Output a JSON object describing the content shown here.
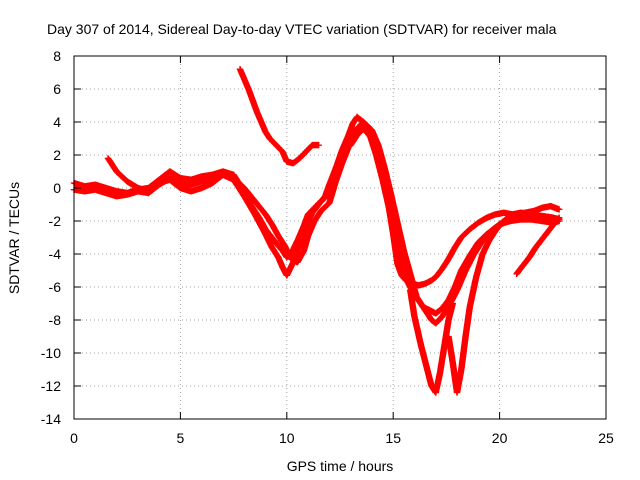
{
  "chart_data": {
    "type": "scatter",
    "title": "Day 307 of 2014, Sidereal Day-to-day VTEC variation (SDTVAR) for receiver mala",
    "xlabel": "GPS time / hours",
    "ylabel": "SDTVAR / TECUs",
    "xlim": [
      0,
      25
    ],
    "ylim": [
      -14,
      8
    ],
    "xticks": [
      0,
      5,
      10,
      15,
      20,
      25
    ],
    "yticks": [
      -14,
      -12,
      -10,
      -8,
      -6,
      -4,
      -2,
      0,
      2,
      4,
      6,
      8
    ],
    "grid": true,
    "marker": "+",
    "color": "#ff0000",
    "series": [
      {
        "x": [
          0.0,
          0.5,
          1.0,
          1.5,
          2.0,
          2.5,
          3.0,
          3.5,
          4.0,
          4.5,
          5.0,
          5.5,
          6.0,
          6.5,
          7.0,
          7.5,
          7.8,
          8.0,
          8.3,
          8.7,
          9.0,
          9.3,
          9.6,
          9.8,
          10.0,
          10.2,
          10.5,
          10.8,
          11.0,
          11.3,
          11.6,
          11.8,
          12.0,
          12.3,
          12.6,
          12.9,
          13.1,
          13.3,
          13.6,
          13.9,
          14.2,
          14.5,
          14.8,
          15.0,
          15.2,
          15.4,
          15.6,
          15.9,
          16.2,
          16.5,
          16.8,
          17.0,
          17.3,
          17.6,
          17.9,
          18.2,
          18.6,
          19.0,
          19.4,
          19.8,
          20.2,
          20.6,
          21.0,
          21.5,
          22.0,
          22.5,
          22.8
        ],
        "y": [
          0.3,
          0.1,
          0.2,
          0.0,
          -0.2,
          -0.3,
          -0.1,
          0.0,
          0.5,
          1.0,
          0.6,
          0.5,
          0.7,
          0.8,
          1.0,
          0.8,
          0.2,
          -0.3,
          -1.0,
          -1.8,
          -2.5,
          -3.0,
          -3.5,
          -3.8,
          -4.2,
          -4.0,
          -3.2,
          -2.3,
          -1.6,
          -1.2,
          -0.8,
          -0.6,
          0.2,
          1.2,
          2.3,
          3.2,
          3.9,
          4.3,
          4.0,
          3.2,
          2.0,
          0.5,
          -1.2,
          -2.8,
          -4.6,
          -5.3,
          -5.6,
          -5.8,
          -5.9,
          -5.8,
          -5.6,
          -5.4,
          -4.9,
          -4.3,
          -3.6,
          -3.0,
          -2.5,
          -2.1,
          -1.8,
          -1.6,
          -1.5,
          -1.6,
          -1.5,
          -1.6,
          -1.7,
          -1.8,
          -1.9
        ]
      },
      {
        "x": [
          0.0,
          0.5,
          1.0,
          1.5,
          2.0,
          2.5,
          3.0,
          3.5,
          4.0,
          4.5,
          5.0,
          5.5,
          6.0,
          6.5,
          7.0,
          7.5,
          8.0,
          8.5,
          9.0,
          9.3,
          9.6,
          9.9,
          10.2,
          10.5,
          10.8,
          11.0,
          11.3,
          11.6,
          12.0,
          12.3,
          12.6,
          13.0,
          13.3,
          13.6,
          14.0,
          14.3,
          14.6,
          14.9,
          15.2,
          15.5,
          15.8,
          16.1,
          16.4,
          16.7,
          17.0,
          17.3,
          17.6,
          17.9,
          18.2,
          18.6,
          19.0,
          19.4,
          19.8,
          20.2,
          20.6,
          21.0,
          21.5,
          22.0,
          22.5,
          22.8
        ],
        "y": [
          -0.1,
          -0.2,
          -0.1,
          -0.3,
          -0.5,
          -0.4,
          -0.2,
          -0.3,
          0.2,
          0.6,
          0.3,
          0.2,
          0.4,
          0.6,
          0.9,
          0.6,
          0.0,
          -0.8,
          -1.6,
          -2.2,
          -2.9,
          -3.5,
          -4.3,
          -4.5,
          -3.8,
          -2.9,
          -2.0,
          -1.4,
          -0.9,
          0.4,
          1.5,
          2.8,
          3.6,
          4.0,
          3.5,
          2.6,
          1.2,
          -0.4,
          -2.1,
          -3.8,
          -5.2,
          -6.6,
          -7.2,
          -7.4,
          -7.6,
          -7.3,
          -6.8,
          -6.0,
          -5.0,
          -4.1,
          -3.3,
          -2.8,
          -2.4,
          -2.1,
          -1.9,
          -1.8,
          -1.8,
          -1.7,
          -1.8,
          -1.9
        ]
      },
      {
        "x": [
          1.6,
          2.0,
          2.5,
          3.0,
          3.5,
          4.0,
          4.5,
          5.0,
          5.5,
          6.0,
          6.5,
          7.0,
          7.5,
          8.0,
          8.5,
          9.0,
          9.3,
          9.6,
          9.8,
          10.0,
          10.3,
          10.6,
          10.9,
          11.2,
          11.5,
          11.8,
          12.0,
          12.3,
          12.6,
          13.0,
          13.3,
          13.6,
          14.0,
          14.3,
          14.6,
          14.9,
          15.1,
          15.3,
          15.6,
          16.0,
          16.3,
          16.6,
          16.8,
          17.0,
          17.3,
          17.6,
          18.0,
          18.4,
          18.8,
          19.2,
          19.6,
          20.0,
          20.5,
          21.0,
          21.5,
          22.0,
          22.5,
          22.8
        ],
        "y": [
          1.8,
          1.0,
          0.4,
          0.0,
          -0.2,
          0.3,
          0.5,
          0.0,
          -0.2,
          0.0,
          0.3,
          0.8,
          0.5,
          -0.5,
          -1.6,
          -2.8,
          -3.6,
          -4.2,
          -4.8,
          -5.3,
          -4.5,
          -3.4,
          -2.3,
          -1.5,
          -1.0,
          -0.5,
          0.2,
          1.0,
          2.2,
          2.6,
          3.2,
          3.6,
          3.0,
          2.1,
          0.8,
          -0.8,
          -2.4,
          -4.0,
          -5.5,
          -6.5,
          -7.0,
          -7.6,
          -8.0,
          -8.2,
          -7.8,
          -7.2,
          -6.2,
          -5.0,
          -4.0,
          -3.2,
          -2.6,
          -2.2,
          -2.0,
          -1.9,
          -1.9,
          -2.0,
          -2.1,
          -2.0
        ]
      },
      {
        "x": [
          7.8,
          8.0,
          8.2,
          8.4,
          8.6,
          8.8,
          9.0,
          9.2,
          9.5,
          9.8,
          10.0,
          10.3,
          10.6,
          10.9,
          11.2,
          11.5
        ],
        "y": [
          7.2,
          6.6,
          6.0,
          5.3,
          4.6,
          4.0,
          3.4,
          3.0,
          2.6,
          2.2,
          1.6,
          1.5,
          1.8,
          2.2,
          2.6,
          2.6
        ]
      },
      {
        "x": [
          15.8,
          16.0,
          16.3,
          16.6,
          16.8,
          17.0,
          17.2,
          17.4,
          17.6,
          17.8
        ],
        "y": [
          -6.2,
          -7.8,
          -9.5,
          -11.0,
          -12.0,
          -12.4,
          -11.2,
          -9.6,
          -8.0,
          -7.0
        ]
      },
      {
        "x": [
          17.6,
          17.8,
          18.0,
          18.2,
          18.4,
          18.6,
          18.9,
          19.2,
          19.5,
          19.8,
          20.1,
          20.4,
          20.8,
          21.2,
          21.6,
          22.0,
          22.4,
          22.8
        ],
        "y": [
          -9.0,
          -10.6,
          -12.4,
          -11.0,
          -9.0,
          -7.2,
          -5.4,
          -4.0,
          -3.2,
          -2.6,
          -2.1,
          -1.8,
          -1.6,
          -1.5,
          -1.4,
          -1.2,
          -1.1,
          -1.3
        ]
      },
      {
        "x": [
          20.8,
          21.1,
          21.4,
          21.7,
          22.0,
          22.3,
          22.6,
          22.8
        ],
        "y": [
          -5.2,
          -4.7,
          -4.2,
          -3.6,
          -3.1,
          -2.6,
          -2.1,
          -1.8
        ]
      }
    ]
  }
}
